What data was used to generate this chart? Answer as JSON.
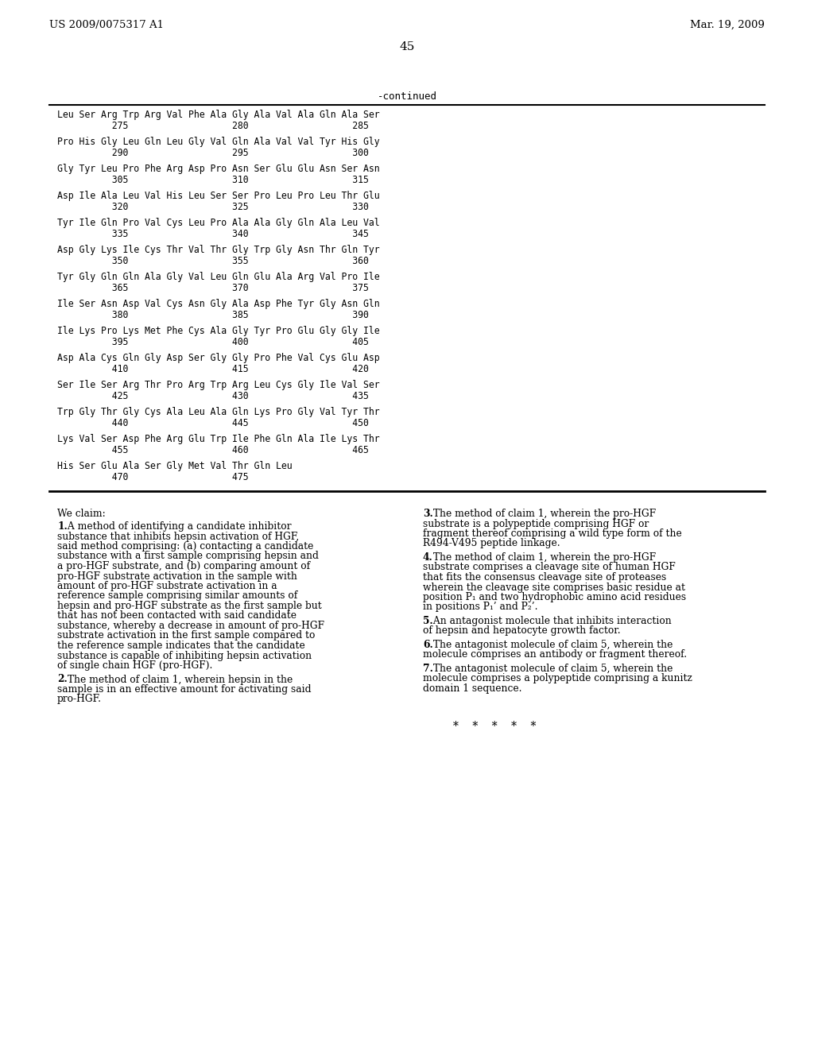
{
  "background_color": "#ffffff",
  "header_left": "US 2009/0075317 A1",
  "header_right": "Mar. 19, 2009",
  "page_number": "45",
  "continued_label": "-continued",
  "sequence_lines": [
    {
      "residues": "Leu Ser Arg Trp Arg Val Phe Ala Gly Ala Val Ala Gln Ala Ser",
      "numbers": "          275                   280                   285"
    },
    {
      "residues": "Pro His Gly Leu Gln Leu Gly Val Gln Ala Val Val Tyr His Gly",
      "numbers": "          290                   295                   300"
    },
    {
      "residues": "Gly Tyr Leu Pro Phe Arg Asp Pro Asn Ser Glu Glu Asn Ser Asn",
      "numbers": "          305                   310                   315"
    },
    {
      "residues": "Asp Ile Ala Leu Val His Leu Ser Ser Pro Leu Pro Leu Thr Glu",
      "numbers": "          320                   325                   330"
    },
    {
      "residues": "Tyr Ile Gln Pro Val Cys Leu Pro Ala Ala Gly Gln Ala Leu Val",
      "numbers": "          335                   340                   345"
    },
    {
      "residues": "Asp Gly Lys Ile Cys Thr Val Thr Gly Trp Gly Asn Thr Gln Tyr",
      "numbers": "          350                   355                   360"
    },
    {
      "residues": "Tyr Gly Gln Gln Ala Gly Val Leu Gln Glu Ala Arg Val Pro Ile",
      "numbers": "          365                   370                   375"
    },
    {
      "residues": "Ile Ser Asn Asp Val Cys Asn Gly Ala Asp Phe Tyr Gly Asn Gln",
      "numbers": "          380                   385                   390"
    },
    {
      "residues": "Ile Lys Pro Lys Met Phe Cys Ala Gly Tyr Pro Glu Gly Gly Ile",
      "numbers": "          395                   400                   405"
    },
    {
      "residues": "Asp Ala Cys Gln Gly Asp Ser Gly Gly Pro Phe Val Cys Glu Asp",
      "numbers": "          410                   415                   420"
    },
    {
      "residues": "Ser Ile Ser Arg Thr Pro Arg Trp Arg Leu Cys Gly Ile Val Ser",
      "numbers": "          425                   430                   435"
    },
    {
      "residues": "Trp Gly Thr Gly Cys Ala Leu Ala Gln Lys Pro Gly Val Tyr Thr",
      "numbers": "          440                   445                   450"
    },
    {
      "residues": "Lys Val Ser Asp Phe Arg Glu Trp Ile Phe Gln Ala Ile Lys Thr",
      "numbers": "          455                   460                   465"
    },
    {
      "residues": "His Ser Glu Ala Ser Gly Met Val Thr Gln Leu",
      "numbers": "          470                   475"
    }
  ],
  "we_claim_title": "We claim:",
  "claims_left": [
    {
      "number": "1",
      "text": ". A method of identifying a candidate inhibitor substance that inhibits hepsin activation of HGF, said method comprising: (a) contacting a candidate substance with a first sample comprising hepsin and a pro-HGF substrate, and (b) comparing amount of pro-HGF substrate activation in the sample with amount of pro-HGF substrate activation in a reference sample comprising similar amounts of hepsin and pro-HGF substrate as the first sample but that has not been contacted with said candidate substance, whereby a decrease in amount of pro-HGF substrate activation in the first sample compared to the reference sample indicates that the candidate substance is capable of inhibiting hepsin activation of single chain HGF (pro-HGF)."
    },
    {
      "number": "2",
      "text": ". The method of claim 1, wherein hepsin in the sample is in an effective amount for activating said pro-HGF."
    }
  ],
  "claims_right": [
    {
      "number": "3",
      "text": ". The method of claim 1, wherein the pro-HGF substrate is a polypeptide comprising HGF or fragment thereof comprising a wild type form of the R494-V495 peptide linkage."
    },
    {
      "number": "4",
      "text": ". The method of claim 1, wherein the pro-HGF substrate comprises a cleavage site of human HGF that fits the consensus cleavage site of proteases wherein the cleavage site comprises basic residue at position P₁ and two hydrophobic amino acid residues in positions P₁’ and P₂’."
    },
    {
      "number": "5",
      "text": ". An antagonist molecule that inhibits interaction of hepsin and hepatocyte growth factor."
    },
    {
      "number": "6",
      "text": ". The antagonist molecule of claim 5, wherein the molecule comprises an antibody or fragment thereof."
    },
    {
      "number": "7",
      "text": ". The antagonist molecule of claim 5, wherein the molecule comprises a polypeptide comprising a kunitz domain 1 sequence."
    }
  ],
  "asterisks": "*    *    *    *    *"
}
